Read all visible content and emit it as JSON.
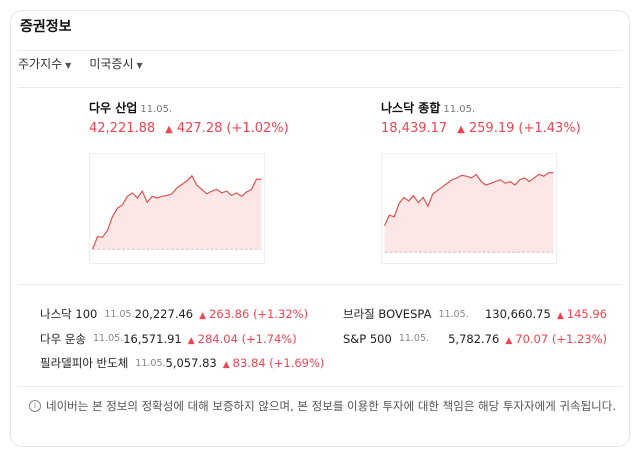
{
  "header": {
    "title": "증권정보"
  },
  "tabs": [
    {
      "label": "주가지수"
    },
    {
      "label": "미국증시"
    }
  ],
  "majors": [
    {
      "name": "다우 산업",
      "date": "11.05.",
      "value": "42,221.88",
      "change": "427.28",
      "pct": "(+1.02%)"
    },
    {
      "name": "나스닥 종합",
      "date": "11.05.",
      "value": "18,439.17",
      "change": "259.19",
      "pct": "(+1.43%)"
    }
  ],
  "list": [
    {
      "name": "나스닥 100",
      "date": "11.05.",
      "value": "20,227.46",
      "change": "263.86",
      "pct": "(+1.32%)"
    },
    {
      "name": "다우 운송",
      "date": "11.05.",
      "value": "16,571.91",
      "change": "284.04",
      "pct": "(+1.74%)"
    },
    {
      "name": "필라델피아 반도체",
      "date": "11.05.",
      "value": "5,057.83",
      "change": "83.84",
      "pct": "(+1.69%)"
    },
    {
      "name": "브라질 BOVESPA",
      "date": "11.05.",
      "value": "130,660.75",
      "change": "145.96",
      "pct": ""
    },
    {
      "name": "S&P 500",
      "date": "11.05.",
      "value": "5,782.76",
      "change": "70.07",
      "pct": "(+1.23%)"
    }
  ],
  "notice": "네이버는 본 정보의 정확성에 대해 보증하지 않으며, 본 정보를 이용한 투자에 대한 책임은 해당 투자자에게 귀속됩니다.",
  "colors": {
    "up": "#f04452",
    "line": "#d9534f",
    "fill": "#fde6e6"
  },
  "chart_data": [
    {
      "type": "area",
      "name": "다우 산업",
      "baseline": 0,
      "values": [
        0,
        15,
        14,
        22,
        38,
        48,
        52,
        62,
        66,
        60,
        68,
        55,
        62,
        60,
        62,
        63,
        65,
        72,
        76,
        80,
        86,
        75,
        70,
        65,
        68,
        70,
        66,
        68,
        63,
        66,
        62,
        67,
        70,
        82,
        82
      ]
    },
    {
      "type": "area",
      "name": "나스닥 종합",
      "baseline": 0,
      "values": [
        30,
        42,
        40,
        55,
        62,
        58,
        64,
        56,
        62,
        52,
        66,
        70,
        74,
        78,
        82,
        84,
        87,
        86,
        84,
        88,
        80,
        76,
        78,
        80,
        82,
        78,
        80,
        76,
        82,
        84,
        80,
        84,
        88,
        86,
        90,
        90
      ]
    }
  ]
}
